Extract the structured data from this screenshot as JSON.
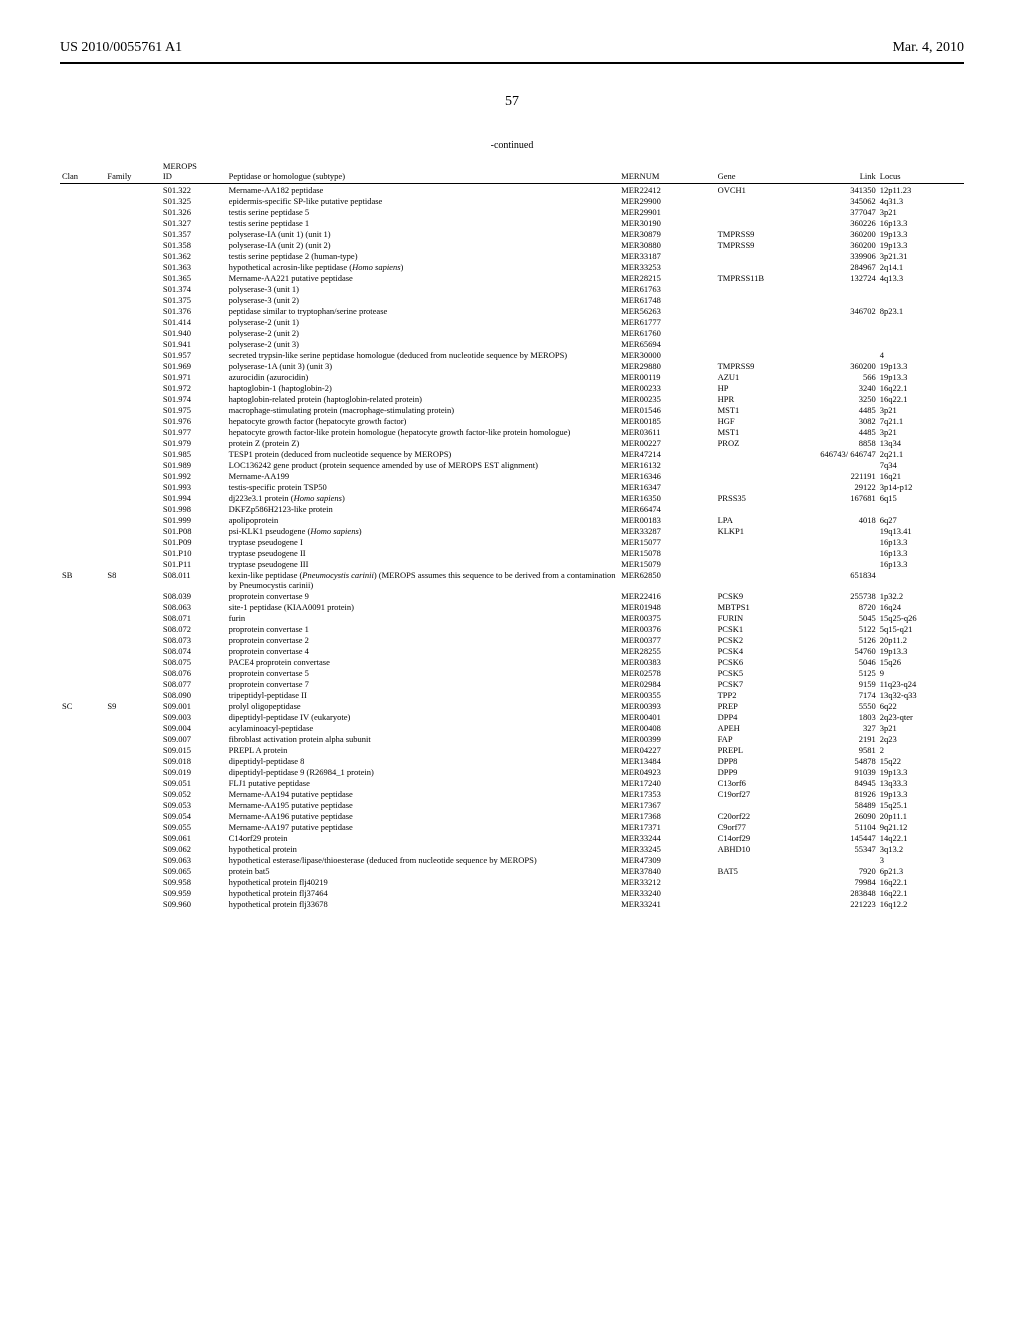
{
  "header": {
    "pub_number": "US 2010/0055761 A1",
    "pub_date": "Mar. 4, 2010",
    "page_number": "57",
    "continued_label": "-continued"
  },
  "columns": {
    "clan": "Clan",
    "family": "Family",
    "merops_id_line1": "MEROPS",
    "merops_id_line2": "ID",
    "peptidase": "Peptidase or homologue (subtype)",
    "mernum": "MERNUM",
    "gene": "Gene",
    "link": "Link",
    "locus": "Locus"
  },
  "rows": [
    {
      "clan": "",
      "family": "",
      "id": "S01.322",
      "pep": "Mername-AA182 peptidase",
      "mernum": "MER22412",
      "gene": "OVCH1",
      "link": "341350",
      "locus": "12p11.23"
    },
    {
      "clan": "",
      "family": "",
      "id": "S01.325",
      "pep": "epidermis-specific SP-like putative peptidase",
      "mernum": "MER29900",
      "gene": "",
      "link": "345062",
      "locus": "4q31.3"
    },
    {
      "clan": "",
      "family": "",
      "id": "S01.326",
      "pep": "testis serine peptidase 5",
      "mernum": "MER29901",
      "gene": "",
      "link": "377047",
      "locus": "3p21"
    },
    {
      "clan": "",
      "family": "",
      "id": "S01.327",
      "pep": "testis serine peptidase 1",
      "mernum": "MER30190",
      "gene": "",
      "link": "360226",
      "locus": "16p13.3"
    },
    {
      "clan": "",
      "family": "",
      "id": "S01.357",
      "pep": "polyserase-IA (unit 1) (unit 1)",
      "mernum": "MER30879",
      "gene": "TMPRSS9",
      "link": "360200",
      "locus": "19p13.3"
    },
    {
      "clan": "",
      "family": "",
      "id": "S01.358",
      "pep": "polyserase-IA (unit 2) (unit 2)",
      "mernum": "MER30880",
      "gene": "TMPRSS9",
      "link": "360200",
      "locus": "19p13.3"
    },
    {
      "clan": "",
      "family": "",
      "id": "S01.362",
      "pep": "testis serine peptidase 2 (human-type)",
      "mernum": "MER33187",
      "gene": "",
      "link": "339906",
      "locus": "3p21.31"
    },
    {
      "clan": "",
      "family": "",
      "id": "S01.363",
      "pep": "hypothetical acrosin-like peptidase (<i>Homo sapiens</i>)",
      "mernum": "MER33253",
      "gene": "",
      "link": "284967",
      "locus": "2q14.1"
    },
    {
      "clan": "",
      "family": "",
      "id": "S01.365",
      "pep": "Mername-AA221 putative peptidase",
      "mernum": "MER28215",
      "gene": "TMPRSS11B",
      "link": "132724",
      "locus": "4q13.3"
    },
    {
      "clan": "",
      "family": "",
      "id": "S01.374",
      "pep": "polyserase-3 (unit 1)",
      "mernum": "MER61763",
      "gene": "",
      "link": "",
      "locus": ""
    },
    {
      "clan": "",
      "family": "",
      "id": "S01.375",
      "pep": "polyserase-3 (unit 2)",
      "mernum": "MER61748",
      "gene": "",
      "link": "",
      "locus": ""
    },
    {
      "clan": "",
      "family": "",
      "id": "S01.376",
      "pep": "peptidase similar to tryptophan/serine protease",
      "mernum": "MER56263",
      "gene": "",
      "link": "346702",
      "locus": "8p23.1"
    },
    {
      "clan": "",
      "family": "",
      "id": "S01.414",
      "pep": "polyserase-2 (unit 1)",
      "mernum": "MER61777",
      "gene": "",
      "link": "",
      "locus": ""
    },
    {
      "clan": "",
      "family": "",
      "id": "S01.940",
      "pep": "polyserase-2 (unit 2)",
      "mernum": "MER61760",
      "gene": "",
      "link": "",
      "locus": ""
    },
    {
      "clan": "",
      "family": "",
      "id": "S01.941",
      "pep": "polyserase-2 (unit 3)",
      "mernum": "MER65694",
      "gene": "",
      "link": "",
      "locus": ""
    },
    {
      "clan": "",
      "family": "",
      "id": "S01.957",
      "pep": "secreted trypsin-like serine peptidase homologue (deduced from nucleotide sequence by MEROPS)",
      "mernum": "MER30000",
      "gene": "",
      "link": "",
      "locus": "4"
    },
    {
      "clan": "",
      "family": "",
      "id": "S01.969",
      "pep": "polyserase-1A (unit 3) (unit 3)",
      "mernum": "MER29880",
      "gene": "TMPRSS9",
      "link": "360200",
      "locus": "19p13.3"
    },
    {
      "clan": "",
      "family": "",
      "id": "S01.971",
      "pep": "azurocidin (azurocidin)",
      "mernum": "MER00119",
      "gene": "AZU1",
      "link": "566",
      "locus": "19p13.3"
    },
    {
      "clan": "",
      "family": "",
      "id": "S01.972",
      "pep": "haptoglobin-1 (haptoglobin-2)",
      "mernum": "MER00233",
      "gene": "HP",
      "link": "3240",
      "locus": "16q22.1"
    },
    {
      "clan": "",
      "family": "",
      "id": "S01.974",
      "pep": "haptoglobin-related protein (haptoglobin-related protein)",
      "mernum": "MER00235",
      "gene": "HPR",
      "link": "3250",
      "locus": "16q22.1"
    },
    {
      "clan": "",
      "family": "",
      "id": "S01.975",
      "pep": "macrophage-stimulating protein (macrophage-stimulating protein)",
      "mernum": "MER01546",
      "gene": "MST1",
      "link": "4485",
      "locus": "3p21"
    },
    {
      "clan": "",
      "family": "",
      "id": "S01.976",
      "pep": "hepatocyte growth factor (hepatocyte growth factor)",
      "mernum": "MER00185",
      "gene": "HGF",
      "link": "3082",
      "locus": "7q21.1"
    },
    {
      "clan": "",
      "family": "",
      "id": "S01.977",
      "pep": "hepatocyte growth factor-like protein homologue (hepatocyte growth factor-like protein homologue)",
      "mernum": "MER03611",
      "gene": "MST1",
      "link": "4485",
      "locus": "3p21"
    },
    {
      "clan": "",
      "family": "",
      "id": "S01.979",
      "pep": "protein Z (protein Z)",
      "mernum": "MER00227",
      "gene": "PROZ",
      "link": "8858",
      "locus": "13q34"
    },
    {
      "clan": "",
      "family": "",
      "id": "S01.985",
      "pep": "TESP1 protein (deduced from nucleotide sequence by MEROPS)",
      "mernum": "MER47214",
      "gene": "",
      "link": "646743/ 646747",
      "locus": "2q21.1"
    },
    {
      "clan": "",
      "family": "",
      "id": "S01.989",
      "pep": "LOC136242 gene product (protein sequence amended by use of MEROPS EST alignment)",
      "mernum": "MER16132",
      "gene": "",
      "link": "",
      "locus": "7q34"
    },
    {
      "clan": "",
      "family": "",
      "id": "S01.992",
      "pep": "Mername-AA199",
      "mernum": "MER16346",
      "gene": "",
      "link": "221191",
      "locus": "16q21"
    },
    {
      "clan": "",
      "family": "",
      "id": "S01.993",
      "pep": "testis-specific protein TSP50",
      "mernum": "MER16347",
      "gene": "",
      "link": "29122",
      "locus": "3p14-p12"
    },
    {
      "clan": "",
      "family": "",
      "id": "S01.994",
      "pep": "dj223e3.1 protein (<i>Homo sapiens</i>)",
      "mernum": "MER16350",
      "gene": "PRSS35",
      "link": "167681",
      "locus": "6q15"
    },
    {
      "clan": "",
      "family": "",
      "id": "S01.998",
      "pep": "DKFZp586H2123-like protein",
      "mernum": "MER66474",
      "gene": "",
      "link": "",
      "locus": ""
    },
    {
      "clan": "",
      "family": "",
      "id": "S01.999",
      "pep": "apolipoprotein",
      "mernum": "MER00183",
      "gene": "LPA",
      "link": "4018",
      "locus": "6q27"
    },
    {
      "clan": "",
      "family": "",
      "id": "S01.P08",
      "pep": "psi-KLK1 pseudogene (<i>Homo sapiens</i>)",
      "mernum": "MER33287",
      "gene": "KLKP1",
      "link": "",
      "locus": "19q13.41"
    },
    {
      "clan": "",
      "family": "",
      "id": "S01.P09",
      "pep": "tryptase pseudogene I",
      "mernum": "MER15077",
      "gene": "",
      "link": "",
      "locus": "16p13.3"
    },
    {
      "clan": "",
      "family": "",
      "id": "S01.P10",
      "pep": "tryptase pseudogene II",
      "mernum": "MER15078",
      "gene": "",
      "link": "",
      "locus": "16p13.3"
    },
    {
      "clan": "",
      "family": "",
      "id": "S01.P11",
      "pep": "tryptase pseudogene III",
      "mernum": "MER15079",
      "gene": "",
      "link": "",
      "locus": "16p13.3"
    },
    {
      "clan": "SB",
      "family": "S8",
      "id": "S08.011",
      "pep": "kexin-like peptidase (<i>Pneumocystis carinii</i>) (MEROPS assumes this sequence to be derived from a contamination by Pneumocystis carinii)",
      "mernum": "MER62850",
      "gene": "",
      "link": "651834",
      "locus": ""
    },
    {
      "clan": "",
      "family": "",
      "id": "S08.039",
      "pep": "proprotein convertase 9",
      "mernum": "MER22416",
      "gene": "PCSK9",
      "link": "255738",
      "locus": "1p32.2"
    },
    {
      "clan": "",
      "family": "",
      "id": "S08.063",
      "pep": "site-1 peptidase (KIAA0091 protein)",
      "mernum": "MER01948",
      "gene": "MBTPS1",
      "link": "8720",
      "locus": "16q24"
    },
    {
      "clan": "",
      "family": "",
      "id": "S08.071",
      "pep": "furin",
      "mernum": "MER00375",
      "gene": "FURIN",
      "link": "5045",
      "locus": "15q25-q26"
    },
    {
      "clan": "",
      "family": "",
      "id": "S08.072",
      "pep": "proprotein convertase 1",
      "mernum": "MER00376",
      "gene": "PCSK1",
      "link": "5122",
      "locus": "5q15-q21"
    },
    {
      "clan": "",
      "family": "",
      "id": "S08.073",
      "pep": "proprotein convertase 2",
      "mernum": "MER00377",
      "gene": "PCSK2",
      "link": "5126",
      "locus": "20p11.2"
    },
    {
      "clan": "",
      "family": "",
      "id": "S08.074",
      "pep": "proprotein convertase 4",
      "mernum": "MER28255",
      "gene": "PCSK4",
      "link": "54760",
      "locus": "19p13.3"
    },
    {
      "clan": "",
      "family": "",
      "id": "S08.075",
      "pep": "PACE4 proprotein convertase",
      "mernum": "MER00383",
      "gene": "PCSK6",
      "link": "5046",
      "locus": "15q26"
    },
    {
      "clan": "",
      "family": "",
      "id": "S08.076",
      "pep": "proprotein convertase 5",
      "mernum": "MER02578",
      "gene": "PCSK5",
      "link": "5125",
      "locus": "9"
    },
    {
      "clan": "",
      "family": "",
      "id": "S08.077",
      "pep": "proprotein convertase 7",
      "mernum": "MER02984",
      "gene": "PCSK7",
      "link": "9159",
      "locus": "11q23-q24"
    },
    {
      "clan": "",
      "family": "",
      "id": "S08.090",
      "pep": "tripeptidyl-peptidase II",
      "mernum": "MER00355",
      "gene": "TPP2",
      "link": "7174",
      "locus": "13q32-q33"
    },
    {
      "clan": "SC",
      "family": "S9",
      "id": "S09.001",
      "pep": "prolyl oligopeptidase",
      "mernum": "MER00393",
      "gene": "PREP",
      "link": "5550",
      "locus": "6q22"
    },
    {
      "clan": "",
      "family": "",
      "id": "S09.003",
      "pep": "dipeptidyl-peptidase IV (eukaryote)",
      "mernum": "MER00401",
      "gene": "DPP4",
      "link": "1803",
      "locus": "2q23-qter"
    },
    {
      "clan": "",
      "family": "",
      "id": "S09.004",
      "pep": "acylaminoacyl-peptidase",
      "mernum": "MER00408",
      "gene": "APEH",
      "link": "327",
      "locus": "3p21"
    },
    {
      "clan": "",
      "family": "",
      "id": "S09.007",
      "pep": "fibroblast activation protein alpha subunit",
      "mernum": "MER00399",
      "gene": "FAP",
      "link": "2191",
      "locus": "2q23"
    },
    {
      "clan": "",
      "family": "",
      "id": "S09.015",
      "pep": "PREPL A protein",
      "mernum": "MER04227",
      "gene": "PREPL",
      "link": "9581",
      "locus": "2"
    },
    {
      "clan": "",
      "family": "",
      "id": "S09.018",
      "pep": "dipeptidyl-peptidase 8",
      "mernum": "MER13484",
      "gene": "DPP8",
      "link": "54878",
      "locus": "15q22"
    },
    {
      "clan": "",
      "family": "",
      "id": "S09.019",
      "pep": "dipeptidyl-peptidase 9 (R26984_1 protein)",
      "mernum": "MER04923",
      "gene": "DPP9",
      "link": "91039",
      "locus": "19p13.3"
    },
    {
      "clan": "",
      "family": "",
      "id": "S09.051",
      "pep": "FLJ1 putative peptidase",
      "mernum": "MER17240",
      "gene": "C13orf6",
      "link": "84945",
      "locus": "13q33.3"
    },
    {
      "clan": "",
      "family": "",
      "id": "S09.052",
      "pep": "Mername-AA194 putative peptidase",
      "mernum": "MER17353",
      "gene": "C19orf27",
      "link": "81926",
      "locus": "19p13.3"
    },
    {
      "clan": "",
      "family": "",
      "id": "S09.053",
      "pep": "Mername-AA195 putative peptidase",
      "mernum": "MER17367",
      "gene": "",
      "link": "58489",
      "locus": "15q25.1"
    },
    {
      "clan": "",
      "family": "",
      "id": "S09.054",
      "pep": "Mername-AA196 putative peptidase",
      "mernum": "MER17368",
      "gene": "C20orf22",
      "link": "26090",
      "locus": "20p11.1"
    },
    {
      "clan": "",
      "family": "",
      "id": "S09.055",
      "pep": "Mername-AA197 putative peptidase",
      "mernum": "MER17371",
      "gene": "C9orf77",
      "link": "51104",
      "locus": "9q21.12"
    },
    {
      "clan": "",
      "family": "",
      "id": "S09.061",
      "pep": "C14orf29 protein",
      "mernum": "MER33244",
      "gene": "C14orf29",
      "link": "145447",
      "locus": "14q22.1"
    },
    {
      "clan": "",
      "family": "",
      "id": "S09.062",
      "pep": "hypothetical protein",
      "mernum": "MER33245",
      "gene": "ABHD10",
      "link": "55347",
      "locus": "3q13.2"
    },
    {
      "clan": "",
      "family": "",
      "id": "S09.063",
      "pep": "hypothetical esterase/lipase/thioesterase (deduced from nucleotide sequence by MEROPS)",
      "mernum": "MER47309",
      "gene": "",
      "link": "",
      "locus": "3"
    },
    {
      "clan": "",
      "family": "",
      "id": "S09.065",
      "pep": "protein bat5",
      "mernum": "MER37840",
      "gene": "BAT5",
      "link": "7920",
      "locus": "6p21.3"
    },
    {
      "clan": "",
      "family": "",
      "id": "S09.958",
      "pep": "hypothetical protein flj40219",
      "mernum": "MER33212",
      "gene": "",
      "link": "79984",
      "locus": "16q22.1"
    },
    {
      "clan": "",
      "family": "",
      "id": "S09.959",
      "pep": "hypothetical protein flj37464",
      "mernum": "MER33240",
      "gene": "",
      "link": "283848",
      "locus": "16q22.1"
    },
    {
      "clan": "",
      "family": "",
      "id": "S09.960",
      "pep": "hypothetical protein flj33678",
      "mernum": "MER33241",
      "gene": "",
      "link": "221223",
      "locus": "16q12.2"
    }
  ]
}
